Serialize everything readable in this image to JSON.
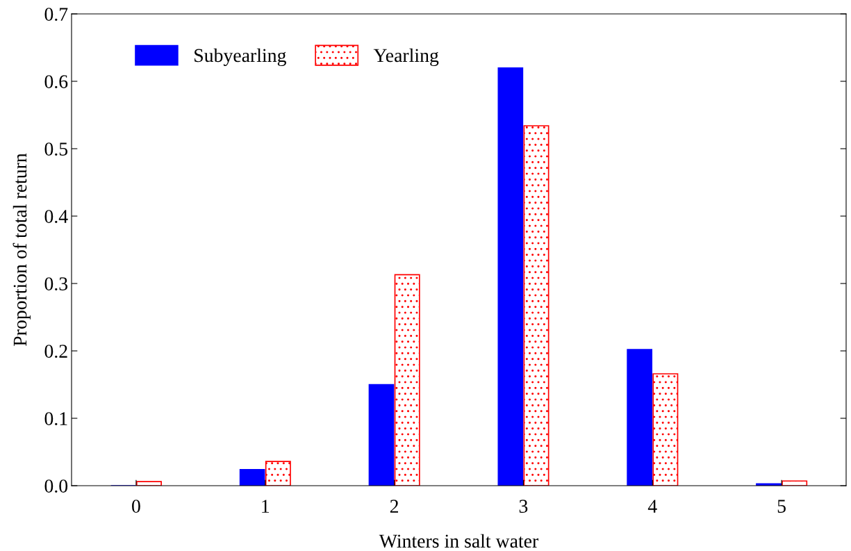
{
  "chart_data": {
    "type": "bar",
    "xlabel": "Winters in salt water",
    "ylabel": "Proportion of total return",
    "categories": [
      "0",
      "1",
      "2",
      "3",
      "4",
      "5"
    ],
    "series": [
      {
        "name": "Subyearling",
        "color": "#0000ff",
        "values": [
          0,
          0.024,
          0.15,
          0.62,
          0.202,
          0.003
        ]
      },
      {
        "name": "Yearling",
        "color": "#ff0000",
        "values": [
          0.006,
          0.036,
          0.313,
          0.534,
          0.166,
          0.007
        ]
      }
    ],
    "ylim": [
      0,
      0.7
    ],
    "yticks": [
      {
        "value": 0,
        "label": "0.0"
      },
      0.1,
      0.2,
      0.3,
      0.4,
      0.5,
      0.6,
      0.7
    ],
    "legend": "top left",
    "grid": false
  }
}
